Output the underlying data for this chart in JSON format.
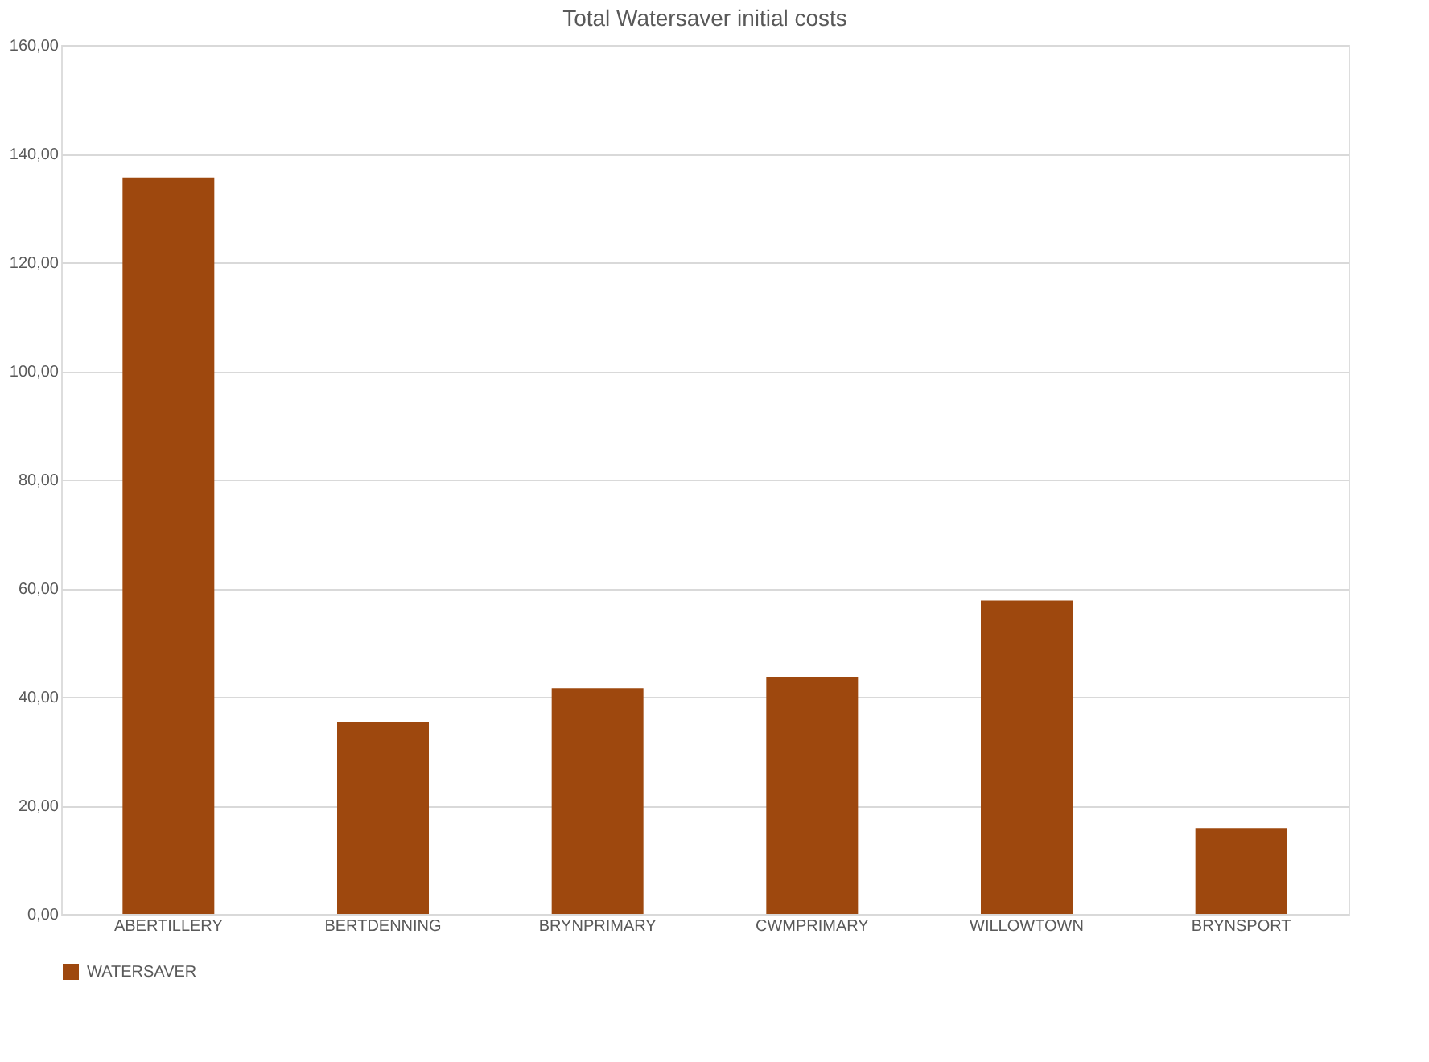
{
  "chart_data": {
    "type": "bar",
    "title": "Total Watersaver initial costs",
    "categories": [
      "ABERTILLERY",
      "BERTDENNING",
      "BRYNPRIMARY",
      "CWMPRIMARY",
      "WILLOWTOWN",
      "BRYNSPORT"
    ],
    "series": [
      {
        "name": "WATERSAVER",
        "color": "#9e480e",
        "values": [
          135.6,
          35.4,
          41.6,
          43.7,
          57.7,
          15.8
        ]
      }
    ],
    "ylim": [
      0,
      160
    ],
    "yticks": [
      {
        "value": 0,
        "label": "0,00"
      },
      {
        "value": 20,
        "label": "20,00"
      },
      {
        "value": 40,
        "label": "40,00"
      },
      {
        "value": 60,
        "label": "60,00"
      },
      {
        "value": 80,
        "label": "80,00"
      },
      {
        "value": 100,
        "label": "100,00"
      },
      {
        "value": 120,
        "label": "120,00"
      },
      {
        "value": 140,
        "label": "140,00"
      },
      {
        "value": 160,
        "label": "160,00"
      }
    ],
    "grid": "y",
    "legend": "bottom"
  }
}
